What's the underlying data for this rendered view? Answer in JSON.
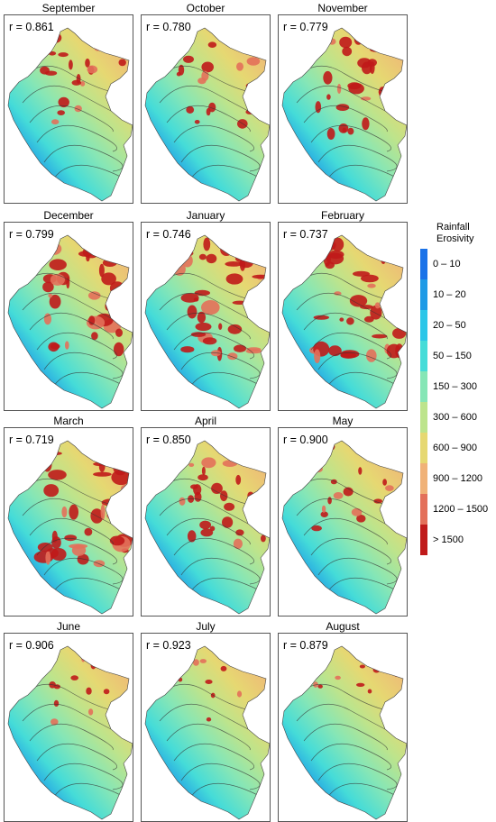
{
  "figure": {
    "panels": [
      {
        "month": "September",
        "r": "r = 0.861",
        "intensity": 0.55
      },
      {
        "month": "October",
        "r": "r = 0.780",
        "intensity": 0.6
      },
      {
        "month": "November",
        "r": "r = 0.779",
        "intensity": 0.8
      },
      {
        "month": "December",
        "r": "r = 0.799",
        "intensity": 0.9
      },
      {
        "month": "January",
        "r": "r = 0.746",
        "intensity": 0.95
      },
      {
        "month": "February",
        "r": "r = 0.737",
        "intensity": 0.95
      },
      {
        "month": "March",
        "r": "r = 0.719",
        "intensity": 1.0
      },
      {
        "month": "April",
        "r": "r = 0.850",
        "intensity": 0.7
      },
      {
        "month": "May",
        "r": "r = 0.900",
        "intensity": 0.45
      },
      {
        "month": "June",
        "r": "r = 0.906",
        "intensity": 0.3
      },
      {
        "month": "July",
        "r": "r = 0.923",
        "intensity": 0.25
      },
      {
        "month": "August",
        "r": "r = 0.879",
        "intensity": 0.3
      }
    ],
    "legend": {
      "title_line1": "Rainfall",
      "title_line2": "Erosivity",
      "classes": [
        {
          "label": "0 – 10",
          "color": "#1a72e8"
        },
        {
          "label": "10 – 20",
          "color": "#1e9ae6"
        },
        {
          "label": "20 – 50",
          "color": "#2bc6e8"
        },
        {
          "label": "50 – 150",
          "color": "#45dcd8"
        },
        {
          "label": "150 – 300",
          "color": "#86e6b6"
        },
        {
          "label": "300 – 600",
          "color": "#bde48c"
        },
        {
          "label": "600 – 900",
          "color": "#e6d872"
        },
        {
          "label": "900 – 1200",
          "color": "#f0b278"
        },
        {
          "label": "1200 – 1500",
          "color": "#e3705a"
        },
        {
          "label": "> 1500",
          "color": "#c01a1a"
        }
      ]
    }
  }
}
